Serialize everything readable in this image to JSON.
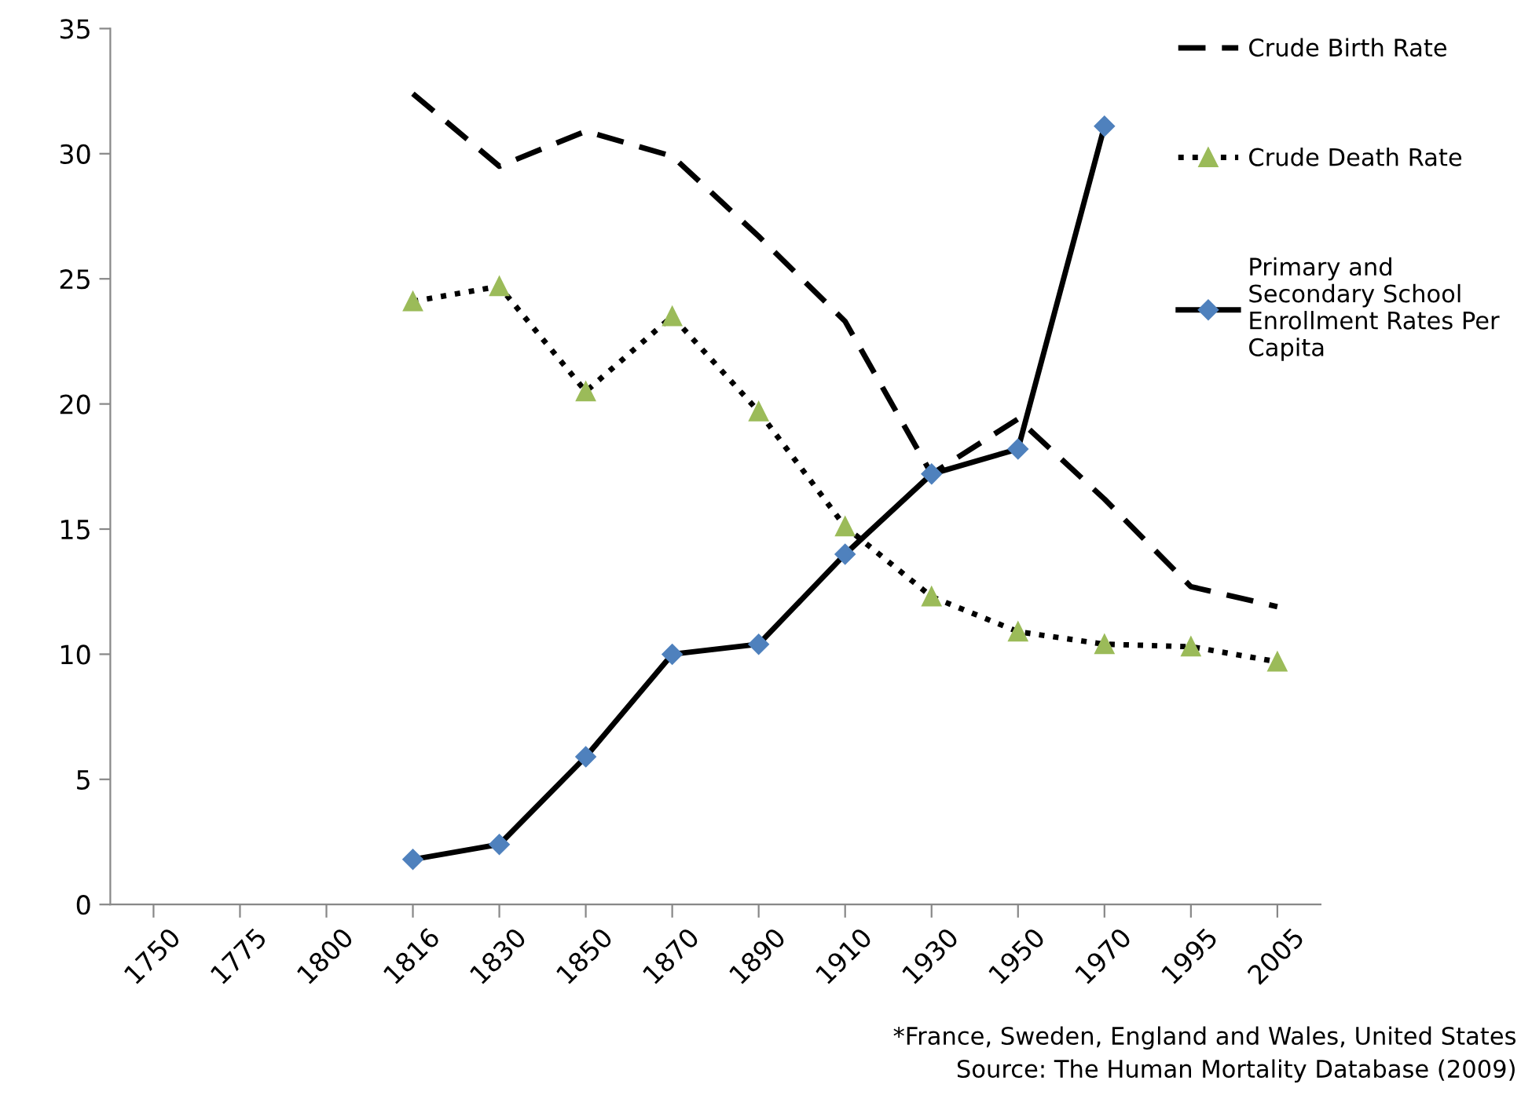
{
  "chart_data": {
    "type": "line",
    "categories": [
      "1750",
      "1775",
      "1800",
      "1816",
      "1830",
      "1850",
      "1870",
      "1890",
      "1910",
      "1930",
      "1950",
      "1970",
      "1995",
      "2005"
    ],
    "series": [
      {
        "name": "Crude Birth Rate",
        "color": "#000000",
        "line_style": "dashed",
        "marker": "none",
        "values": [
          null,
          null,
          null,
          32.4,
          29.5,
          30.9,
          29.9,
          26.7,
          23.3,
          17.2,
          19.4,
          16.2,
          12.7,
          11.9
        ]
      },
      {
        "name": "Crude Death Rate",
        "color": "#9bbb59",
        "line_style": "dotted",
        "marker": "triangle",
        "values": [
          null,
          null,
          null,
          24.1,
          24.7,
          20.5,
          23.5,
          19.7,
          15.1,
          12.3,
          10.9,
          10.4,
          10.3,
          9.7
        ]
      },
      {
        "name": "Primary and\nSecondary School\nEnrollment Rates Per\nCapita",
        "color": "#4f81bd",
        "line_style": "solid",
        "marker": "diamond",
        "values": [
          null,
          null,
          null,
          1.8,
          2.4,
          5.9,
          10.0,
          10.4,
          14.0,
          17.2,
          18.2,
          31.1,
          null,
          null
        ]
      }
    ],
    "ylim": [
      0,
      35
    ],
    "yticks": [
      0,
      5,
      10,
      15,
      20,
      25,
      30,
      35
    ],
    "grid": false,
    "legend": "right",
    "annotations": [
      "*France, Sweden, England and Wales, United States",
      "Source: The Human Mortality Database (2009)"
    ]
  }
}
